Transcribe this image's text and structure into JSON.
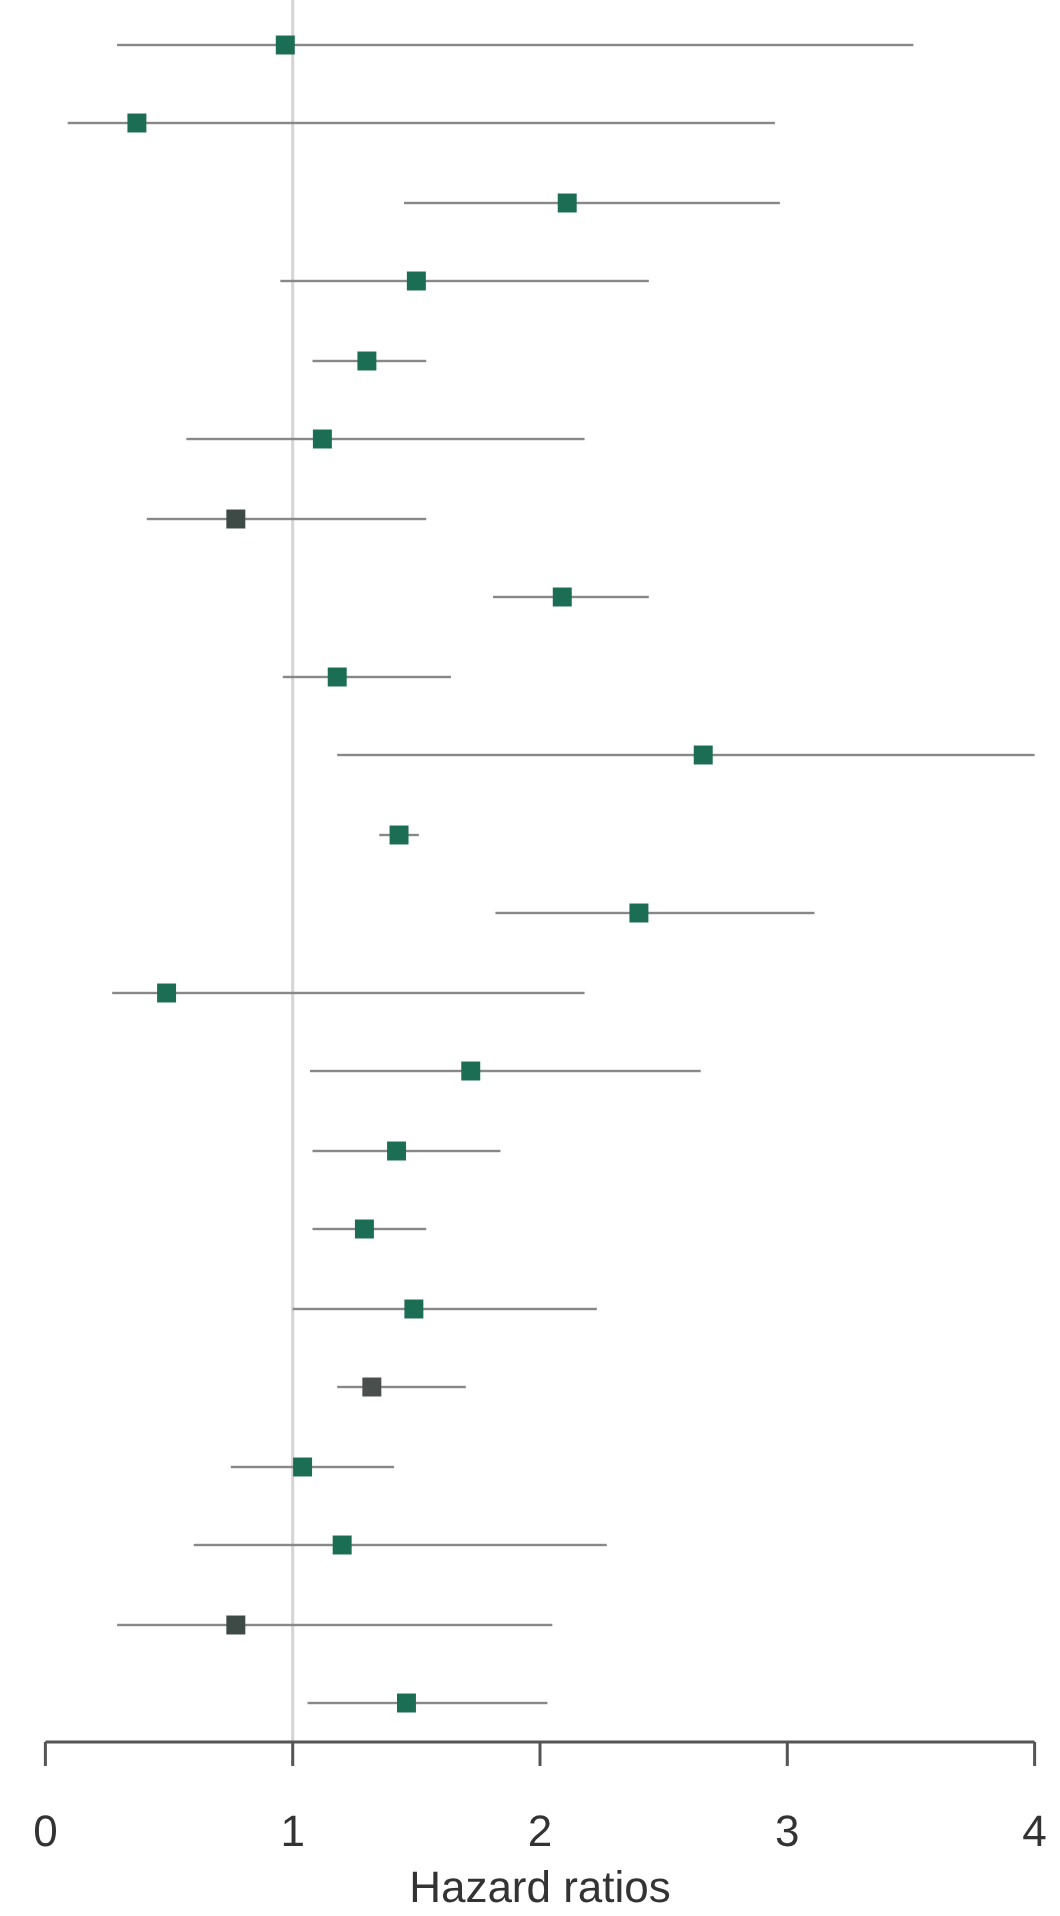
{
  "chart_data": {
    "type": "scatter",
    "orientation": "horizontal",
    "xlabel": "Hazard ratios",
    "categories": [
      null,
      null,
      null,
      null,
      null,
      null,
      null,
      null,
      null,
      null,
      null,
      null,
      null,
      null,
      null,
      null,
      null,
      null,
      null,
      null,
      null,
      null
    ],
    "values": [
      0.97,
      0.37,
      2.11,
      1.5,
      1.3,
      1.12,
      0.77,
      2.09,
      1.18,
      2.66,
      1.43,
      2.4,
      0.49,
      1.72,
      1.42,
      1.29,
      1.49,
      1.32,
      1.04,
      1.2,
      0.77,
      1.46
    ],
    "errors": [
      [
        0.29,
        3.51
      ],
      [
        0.09,
        2.95
      ],
      [
        1.45,
        2.97
      ],
      [
        0.95,
        2.44
      ],
      [
        1.08,
        1.54
      ],
      [
        0.57,
        2.18
      ],
      [
        0.41,
        1.54
      ],
      [
        1.81,
        2.44
      ],
      [
        0.96,
        1.64
      ],
      [
        1.18,
        4.0
      ],
      [
        1.35,
        1.51
      ],
      [
        1.82,
        3.11
      ],
      [
        0.27,
        2.18
      ],
      [
        1.07,
        2.65
      ],
      [
        1.08,
        1.84
      ],
      [
        1.08,
        1.54
      ],
      [
        1.0,
        2.23
      ],
      [
        1.18,
        1.7
      ],
      [
        0.75,
        1.41
      ],
      [
        0.6,
        2.27
      ],
      [
        0.29,
        2.05
      ],
      [
        1.06,
        2.03
      ]
    ],
    "colors": [
      "#1b6e53",
      "#1b6e53",
      "#1b6e53",
      "#1b6e53",
      "#1b6e53",
      "#1b6e53",
      "#3d4a45",
      "#1b6e53",
      "#1b6e53",
      "#1b6e53",
      "#1b6e53",
      "#1b6e53",
      "#1b6e53",
      "#1b6e53",
      "#1b6e53",
      "#1b6e53",
      "#1b6e53",
      "#4a4f4d",
      "#1b6e53",
      "#1b6e53",
      "#3d4a45",
      "#1b6e53"
    ],
    "xlim": [
      0,
      4
    ],
    "xticks": [
      0,
      1,
      2,
      3,
      4
    ],
    "marker": "square",
    "ref_lines": [
      {
        "axis": "x",
        "value": 1,
        "color": "#d4d4d4"
      }
    ]
  }
}
